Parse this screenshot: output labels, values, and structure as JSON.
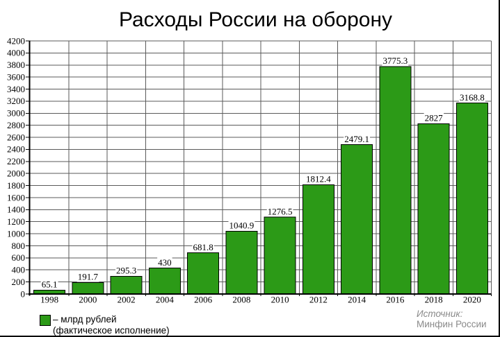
{
  "chart_data": {
    "type": "bar",
    "title": "Расходы России на оборону",
    "categories": [
      "1998",
      "2000",
      "2002",
      "2004",
      "2006",
      "2008",
      "2010",
      "2012",
      "2014",
      "2016",
      "2018",
      "2020"
    ],
    "values": [
      65.1,
      191.7,
      295.3,
      430,
      681.8,
      1040.9,
      1276.5,
      1812.4,
      2479.1,
      3775.3,
      2827,
      3168.8
    ],
    "value_labels": [
      "65.1",
      "191.7",
      "295.3",
      "430",
      "681.8",
      "1040.9",
      "1276.5",
      "1812.4",
      "2479.1",
      "3775.3",
      "2827",
      "3168.8"
    ],
    "y_ticks": [
      0,
      200,
      400,
      600,
      800,
      1000,
      1200,
      1400,
      1600,
      1800,
      2000,
      2200,
      2400,
      2600,
      2800,
      3000,
      3200,
      3400,
      3600,
      3800,
      4000,
      4200
    ],
    "ylim": [
      0,
      4200
    ],
    "xlabel": "",
    "ylabel": "",
    "grid": "on",
    "legend_position": "bottom-left",
    "colors": {
      "bar_fill": "#2C9A17",
      "bar_border": "#000000",
      "grid": "#5a5a5a",
      "axis": "#000000",
      "label": "#000000",
      "source_text": "#8a8a8a"
    },
    "legend": {
      "line1": "– млрд рублей",
      "line2": "(фактическое исполнение)"
    },
    "source": {
      "line1": "Источник:",
      "line2": "Минфин России"
    }
  }
}
